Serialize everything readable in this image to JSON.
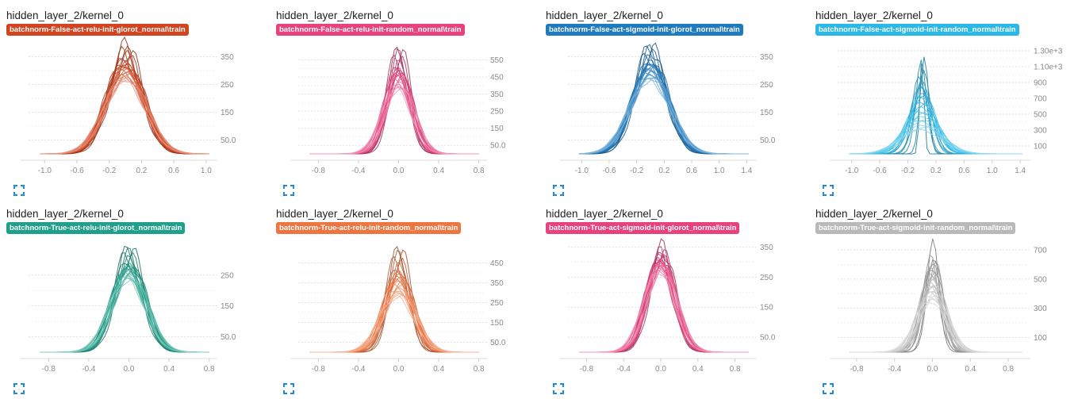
{
  "chart_data": [
    {
      "type": "line",
      "title": "hidden_layer_2/kernel_0",
      "run": "batchnorm-False-act-relu-init-glorot_normal\\train",
      "color": "#d2441f",
      "x_ticks": [
        "-1.0",
        "-0.6",
        "-0.2",
        "0.2",
        "0.6",
        "1.0"
      ],
      "y_ticks": [
        "50.0",
        "150",
        "250",
        "350"
      ],
      "xlim": [
        -1.2,
        1.1
      ],
      "ylim": [
        0,
        400
      ],
      "peak_range": [
        265,
        385
      ],
      "spread_range": [
        0.2,
        0.26
      ],
      "mean": 0.0,
      "num_lines": 22
    },
    {
      "type": "line",
      "title": "hidden_layer_2/kernel_0",
      "run": "batchnorm-False-act-relu-init-random_normal\\train",
      "color": "#e8417e",
      "x_ticks": [
        "-0.8",
        "-0.4",
        "0.0",
        "0.4",
        "0.8"
      ],
      "y_ticks": [
        "50.0",
        "150",
        "250",
        "350",
        "450",
        "550"
      ],
      "xlim": [
        -1.0,
        0.85
      ],
      "ylim": [
        0,
        650
      ],
      "peak_range": [
        380,
        610
      ],
      "spread_range": [
        0.1,
        0.15
      ],
      "mean": 0.0,
      "num_lines": 22
    },
    {
      "type": "line",
      "title": "hidden_layer_2/kernel_0",
      "run": "batchnorm-False-act-sigmoid-init-glorot_normal\\train",
      "color": "#1f7bbf",
      "x_ticks": [
        "-1.0",
        "-0.6",
        "-0.2",
        "0.2",
        "0.6",
        "1.0",
        "1.4"
      ],
      "y_ticks": [
        "50.0",
        "150",
        "250",
        "350"
      ],
      "xlim": [
        -1.2,
        1.5
      ],
      "ylim": [
        0,
        400
      ],
      "peak_range": [
        265,
        385
      ],
      "spread_range": [
        0.22,
        0.3
      ],
      "mean": 0.0,
      "num_lines": 22
    },
    {
      "type": "line",
      "title": "hidden_layer_2/kernel_0",
      "run": "batchnorm-False-act-sigmoid-init-random_normal\\train",
      "color": "#2ab9e6",
      "x_ticks": [
        "-1.0",
        "-0.6",
        "-0.2",
        "0.2",
        "0.6",
        "1.0",
        "1.4"
      ],
      "y_ticks": [
        "100",
        "300",
        "500",
        "700",
        "900",
        "1.10e+3",
        "1.30e+3"
      ],
      "xlim": [
        -1.2,
        1.5
      ],
      "ylim": [
        0,
        1400
      ],
      "peak_range": [
        300,
        1280
      ],
      "spread_range": [
        0.03,
        0.3
      ],
      "mean": 0.0,
      "num_lines": 22
    },
    {
      "type": "line",
      "title": "hidden_layer_2/kernel_0",
      "run": "batchnorm-True-act-relu-init-glorot_normal\\train",
      "color": "#1fa08a",
      "x_ticks": [
        "-0.8",
        "-0.4",
        "0.0",
        "0.4",
        "0.8"
      ],
      "y_ticks": [
        "50.0",
        "150",
        "250"
      ],
      "xlim": [
        -1.0,
        0.85
      ],
      "ylim": [
        0,
        360
      ],
      "peak_range": [
        235,
        330
      ],
      "spread_range": [
        0.14,
        0.18
      ],
      "mean": 0.0,
      "num_lines": 22
    },
    {
      "type": "line",
      "title": "hidden_layer_2/kernel_0",
      "run": "batchnorm-True-act-relu-init-random_normal\\train",
      "color": "#ef7540",
      "x_ticks": [
        "-0.8",
        "-0.4",
        "0.0",
        "0.4",
        "0.8"
      ],
      "y_ticks": [
        "50.0",
        "150",
        "250",
        "350",
        "450"
      ],
      "xlim": [
        -1.0,
        0.85
      ],
      "ylim": [
        0,
        560
      ],
      "peak_range": [
        280,
        520
      ],
      "spread_range": [
        0.1,
        0.17
      ],
      "mean": 0.0,
      "num_lines": 22
    },
    {
      "type": "line",
      "title": "hidden_layer_2/kernel_0",
      "run": "batchnorm-True-act-sigmoid-init-glorot_normal\\train",
      "color": "#e8417e",
      "x_ticks": [
        "-0.8",
        "-0.4",
        "0.0",
        "0.4",
        "0.8"
      ],
      "y_ticks": [
        "50.0",
        "150",
        "250",
        "350"
      ],
      "xlim": [
        -1.0,
        1.0
      ],
      "ylim": [
        0,
        370
      ],
      "peak_range": [
        270,
        350
      ],
      "spread_range": [
        0.13,
        0.17
      ],
      "mean": 0.0,
      "num_lines": 22
    },
    {
      "type": "line",
      "title": "hidden_layer_2/kernel_0",
      "run": "batchnorm-True-act-sigmoid-init-random_normal\\train",
      "color": "#b9b9b9",
      "x_ticks": [
        "-0.8",
        "-0.4",
        "0.0",
        "0.4",
        "0.8"
      ],
      "y_ticks": [
        "100",
        "300",
        "500",
        "700"
      ],
      "xlim": [
        -1.0,
        1.0
      ],
      "ylim": [
        0,
        760
      ],
      "peak_range": [
        350,
        720
      ],
      "spread_range": [
        0.07,
        0.16
      ],
      "mean": 0.0,
      "num_lines": 22
    }
  ],
  "icons": {
    "expand": "fullscreen-icon"
  }
}
